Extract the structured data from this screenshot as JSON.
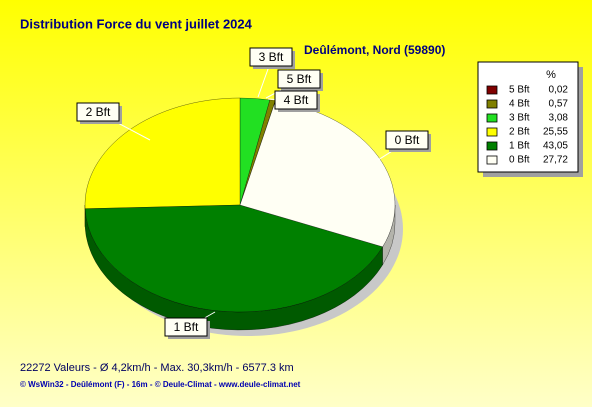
{
  "chart_data": {
    "type": "pie",
    "title": "Distribution Force du vent  juillet 2024",
    "subtitle": "Deûlémont, Nord (59890)",
    "legend_header": "%",
    "categories": [
      "5 Bft",
      "4 Bft",
      "3 Bft",
      "2 Bft",
      "1 Bft",
      "0 Bft"
    ],
    "values": [
      0.02,
      0.57,
      3.08,
      25.55,
      43.05,
      27.72
    ],
    "value_labels": [
      "0,02",
      "0,57",
      "3,08",
      "25,55",
      "43,05",
      "27,72"
    ],
    "colors": [
      "#800000",
      "#808000",
      "#22e022",
      "#ffff00",
      "#008000",
      "#fffff4"
    ],
    "legend": "right",
    "footer": "22272 Valeurs   -   Ø 4,2km/h  -  Max. 30,3km/h   -   6577.3 km",
    "credits": "© WsWin32  -  Deûlémont (F) - 16m  -  © Deule-Climat - www.deule-climat.net"
  }
}
